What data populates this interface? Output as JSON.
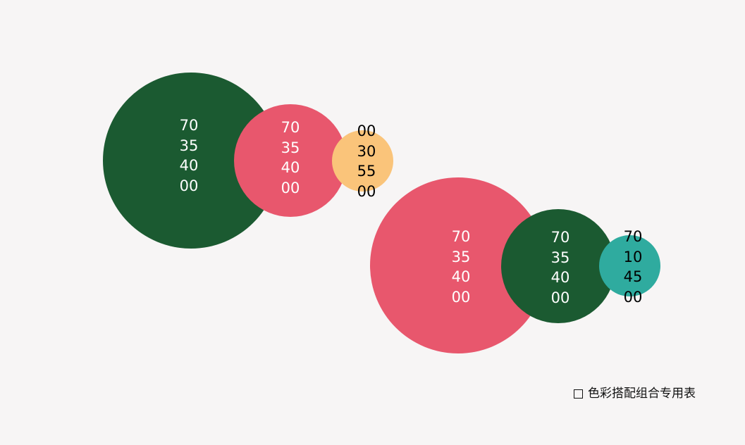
{
  "colors": {
    "background": "#f7f5f5",
    "dark_green": "#1b5a31",
    "pink_red": "#e8576d",
    "light_orange": "#fac47a",
    "teal": "#2fab9f"
  },
  "group1": {
    "large": [
      "70",
      "35",
      "40",
      "00"
    ],
    "medium": [
      "70",
      "35",
      "40",
      "00"
    ],
    "small": [
      "00",
      "30",
      "55",
      "00"
    ]
  },
  "group2": {
    "large": [
      "70",
      "35",
      "40",
      "00"
    ],
    "medium": [
      "70",
      "35",
      "40",
      "00"
    ],
    "small": [
      "70",
      "10",
      "45",
      "00"
    ]
  },
  "caption": {
    "text": "色彩搭配组合专用表"
  }
}
